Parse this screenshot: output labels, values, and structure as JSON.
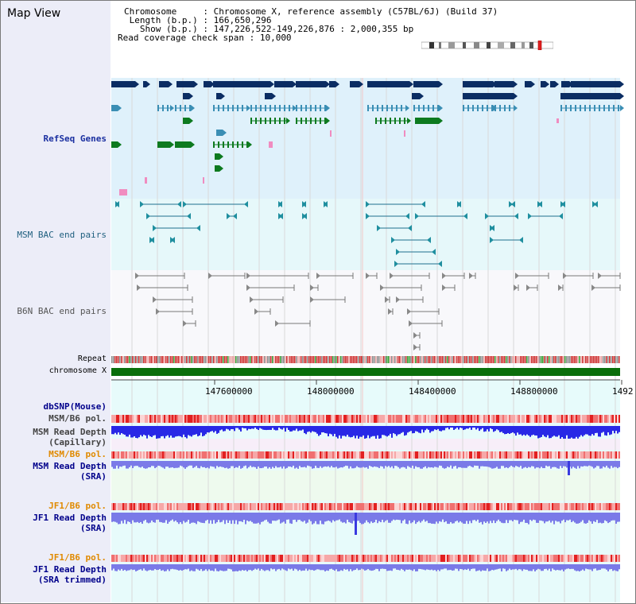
{
  "title": "Map View",
  "info": {
    "rows": [
      {
        "key": "Chromosome     ",
        "value": ": Chromosome X, reference assembly (C57BL/6J) (Build 37)"
      },
      {
        "key": " Length (b.p.) ",
        "value": ": 166,650,296"
      },
      {
        "key": "   Show (b.p.) ",
        "value": ": 147,226,522-149,226,876 : 2,000,355 bp"
      },
      {
        "key": "Read coverage check span ",
        "value": ": 10,000"
      }
    ]
  },
  "tracks": {
    "refseq": "RefSeq Genes",
    "msm_bac": "MSM BAC end pairs",
    "b6n_bac": "B6N BAC end pairs",
    "repeat": "Repeat",
    "chromosome": "chromosome X",
    "dbsnp": "dbSNP(Mouse)",
    "msm_b6_pol_1": "MSM/B6 pol.",
    "msm_read_depth_cap_1": "MSM Read Depth",
    "msm_read_depth_cap_2": "(Capillary)",
    "msm_b6_pol_2": "MSM/B6 pol.",
    "msm_read_depth_sra_1": "MSM Read Depth",
    "msm_read_depth_sra_2": "(SRA)",
    "jf1_b6_pol_1": "JF1/B6 pol.",
    "jf1_read_depth_sra_1": "JF1 Read Depth",
    "jf1_read_depth_sra_2": "(SRA)",
    "jf1_b6_pol_2": "JF1/B6 pol.",
    "jf1_read_depth_trim_1": "JF1 Read Depth",
    "jf1_read_depth_trim_2": "(SRA trimmed)"
  },
  "axis": {
    "ticks": [
      "147600000",
      "148000000",
      "148400000",
      "148800000",
      "1492"
    ]
  },
  "colors": {
    "refseq_bg": "#dff1fb",
    "msm_bg": "#e6f8fa",
    "b6n_bg": "#f8f8fb",
    "gene_dark": "#0b2d63",
    "gene_mid": "#3a8eb4",
    "gene_green": "#0d7a1f",
    "chrom_bar": "#0a6e0a",
    "depth_blue": "#2828e6",
    "depth_sra": "#7a7ae8",
    "pink": "#f08cc0"
  }
}
